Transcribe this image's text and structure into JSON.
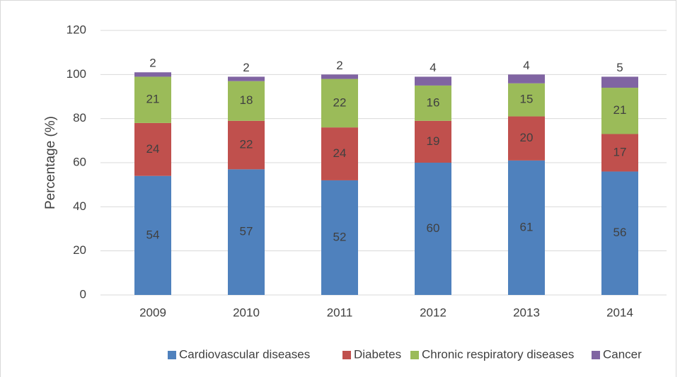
{
  "chart_data": {
    "type": "stacked_bar",
    "y_label": "Percentage (%)",
    "categories": [
      "2009",
      "2010",
      "2011",
      "2012",
      "2013",
      "2014"
    ],
    "series": [
      {
        "name": "Cardiovascular diseases",
        "color": "#4f81bd",
        "values": [
          54,
          57,
          52,
          60,
          61,
          56
        ]
      },
      {
        "name": "Diabetes",
        "color": "#c0504d",
        "values": [
          24,
          22,
          24,
          19,
          20,
          17
        ]
      },
      {
        "name": "Chronic respiratory diseases",
        "color": "#9bbb59",
        "values": [
          21,
          18,
          22,
          16,
          15,
          21
        ]
      },
      {
        "name": "Cancer",
        "color": "#8064a2",
        "values": [
          2,
          2,
          2,
          4,
          4,
          5
        ]
      }
    ],
    "ylim": [
      0,
      120
    ],
    "yticks": [
      0,
      20,
      40,
      60,
      80,
      100,
      120
    ],
    "grid": true,
    "legend": "bottom"
  }
}
